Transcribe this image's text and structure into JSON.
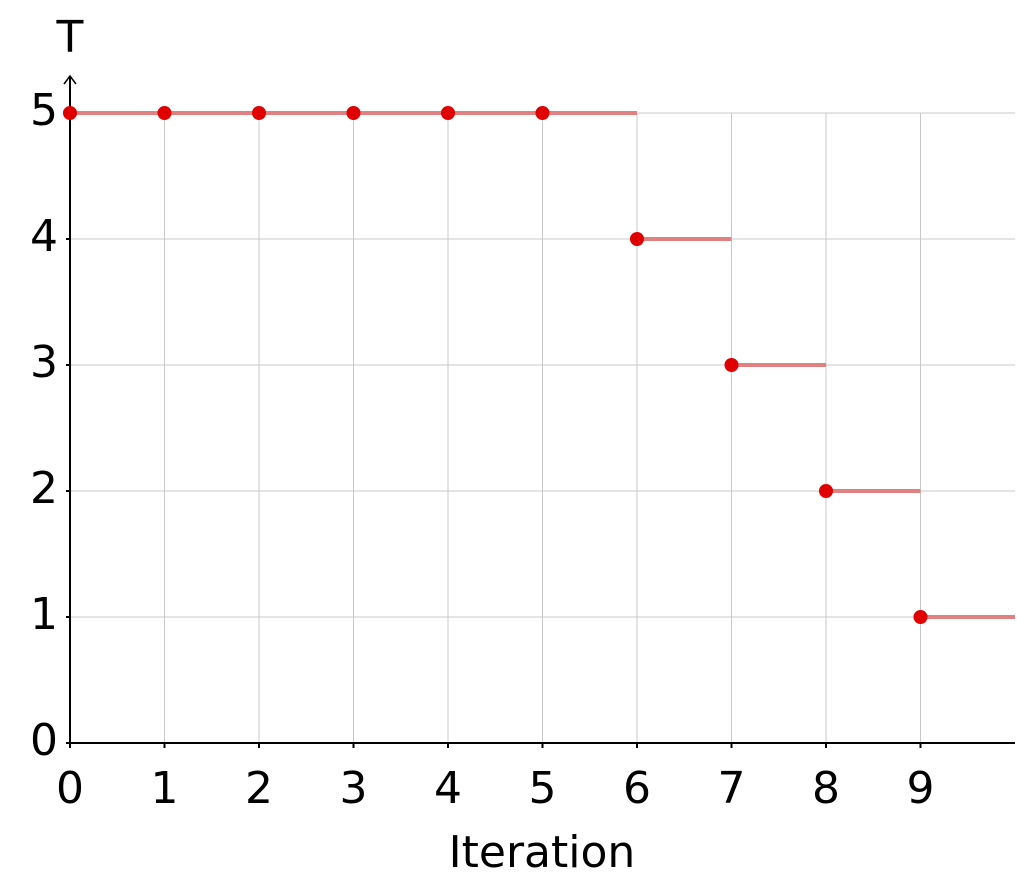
{
  "chart_data": {
    "type": "step",
    "xlabel": "Iteration",
    "ylabel": "T",
    "x": [
      0,
      1,
      2,
      3,
      4,
      5,
      6,
      7,
      8,
      9
    ],
    "series": [
      {
        "name": "T",
        "color": "#e00000",
        "line_color": "#e08080",
        "values": [
          5,
          5,
          5,
          5,
          5,
          5,
          4,
          3,
          2,
          1
        ]
      }
    ],
    "xlim": [
      0,
      10
    ],
    "ylim": [
      0,
      5
    ],
    "xticks": [
      0,
      1,
      2,
      3,
      4,
      5,
      6,
      7,
      8,
      9
    ],
    "yticks": [
      0,
      1,
      2,
      3,
      4,
      5
    ],
    "grid": true
  }
}
